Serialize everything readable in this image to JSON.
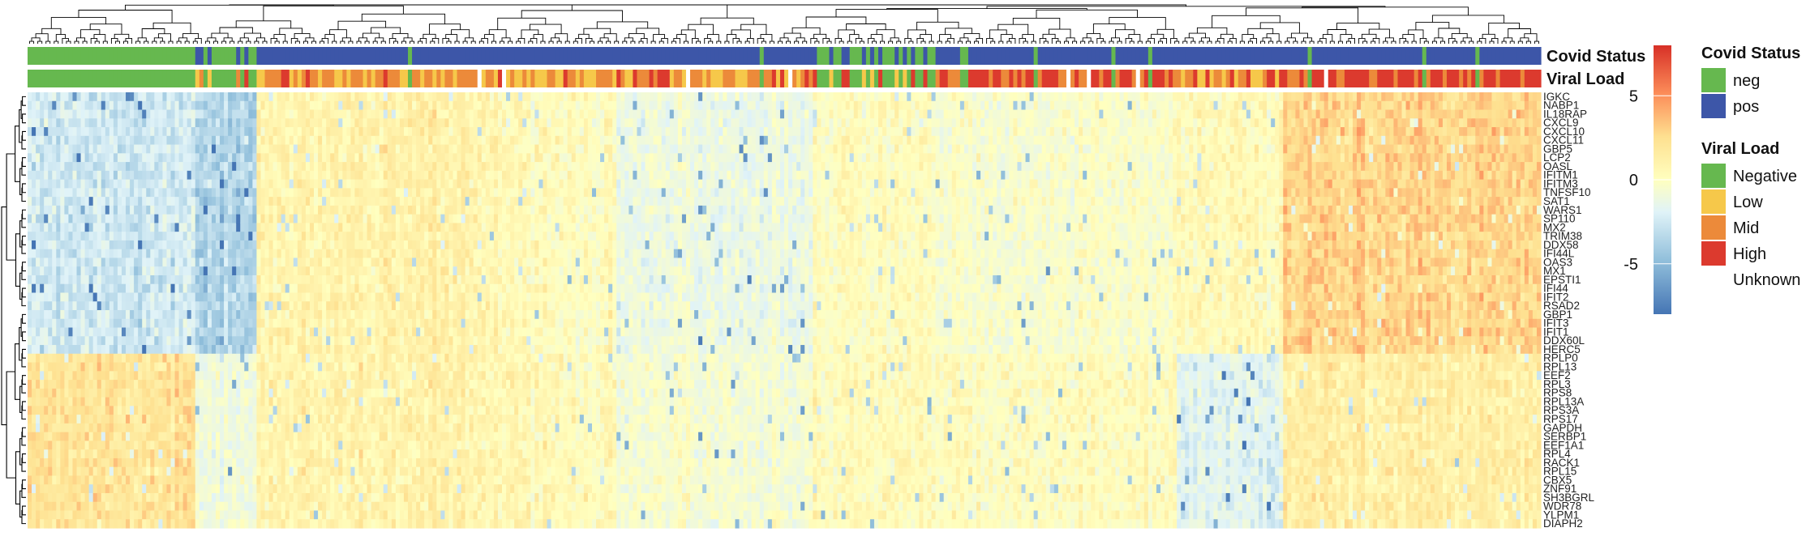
{
  "chart_data": {
    "type": "heatmap",
    "title": "",
    "annotations": [
      {
        "name": "Covid Status"
      },
      {
        "name": "Viral Load"
      }
    ],
    "rows": [
      "IGKC",
      "NABP1",
      "IL18RAP",
      "CXCL9",
      "CXCL10",
      "CXCL11",
      "GBP5",
      "LCP2",
      "OASL",
      "IFITM1",
      "IFITM3",
      "TNFSF10",
      "SAT1",
      "WARS1",
      "SP110",
      "MX2",
      "TRIM38",
      "DDX58",
      "IFI44L",
      "OAS3",
      "MX1",
      "EPSTI1",
      "IFI44",
      "IFIT2",
      "RSAD2",
      "GBP1",
      "IFIT3",
      "IFIT1",
      "DDX60L",
      "HERC5",
      "RPLP0",
      "RPL13",
      "EEF2",
      "RPL3",
      "RPS8",
      "RPL13A",
      "RPS3A",
      "RPS17",
      "GAPDH",
      "SERBP1",
      "EEF1A1",
      "RPL4",
      "RACK1",
      "RPL15",
      "CBX5",
      "ZNF91",
      "SH3BGRL",
      "WDR78",
      "YLPM1",
      "DIAPH2"
    ],
    "color_scale": {
      "ticks": [
        5,
        0,
        -5
      ],
      "range": [
        -8,
        8
      ],
      "colors": [
        "#4575b4",
        "#91bfdb",
        "#e0f3f8",
        "#ffffbf",
        "#fee090",
        "#fc8d59",
        "#d73027"
      ]
    },
    "legend": [
      {
        "title": "Covid Status",
        "items": [
          {
            "label": "neg",
            "color": "#66b84f"
          },
          {
            "label": "pos",
            "color": "#3d56a8"
          }
        ]
      },
      {
        "title": "Viral Load",
        "items": [
          {
            "label": "Negative",
            "color": "#66b84f"
          },
          {
            "label": "Low",
            "color": "#f6c84a"
          },
          {
            "label": "Mid",
            "color": "#ec8a3a"
          },
          {
            "label": "High",
            "color": "#dc3a2e"
          },
          {
            "label": "Unknown",
            "color": "#ffffff"
          }
        ]
      }
    ],
    "column_segments": [
      {
        "span": 0.11,
        "status": "neg",
        "load": "Negative",
        "pattern": "neg-ifn-low"
      },
      {
        "span": 0.04,
        "status": "mixed",
        "load": "Mixed",
        "pattern": "neg-blue"
      },
      {
        "span": 0.16,
        "status": "pos",
        "load": "Mid",
        "pattern": "neutral-warm"
      },
      {
        "span": 0.08,
        "status": "pos",
        "load": "Mixed",
        "pattern": "neutral"
      },
      {
        "span": 0.13,
        "status": "pos",
        "load": "Mixed",
        "pattern": "cool-block"
      },
      {
        "span": 0.08,
        "status": "mixed",
        "load": "Mixed",
        "pattern": "neutral"
      },
      {
        "span": 0.16,
        "status": "pos",
        "load": "High",
        "pattern": "neutral-cool"
      },
      {
        "span": 0.07,
        "status": "pos",
        "load": "Mixed",
        "pattern": "cool-ribo"
      },
      {
        "span": 0.17,
        "status": "pos",
        "load": "High",
        "pattern": "ifn-high"
      }
    ]
  }
}
